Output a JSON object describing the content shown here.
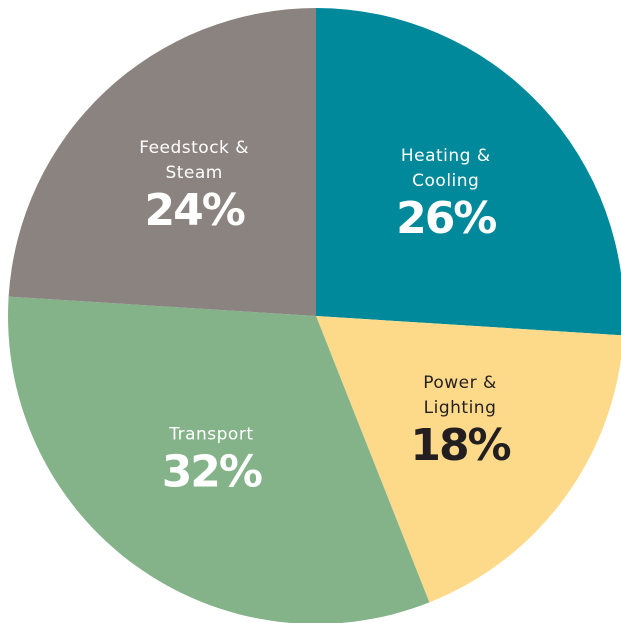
{
  "chart_data": {
    "type": "pie",
    "categories": [
      "Heating & Cooling",
      "Power & Lighting",
      "Transport",
      "Feedstock & Steam"
    ],
    "values": [
      26,
      18,
      32,
      24
    ],
    "value_labels": [
      "26%",
      "18%",
      "32%",
      "24%"
    ],
    "colors": [
      "#00899a",
      "#fdd98a",
      "#84b38a",
      "#8b837f"
    ],
    "label_colors": [
      "#ffffff",
      "#231f20",
      "#ffffff",
      "#ffffff"
    ]
  }
}
